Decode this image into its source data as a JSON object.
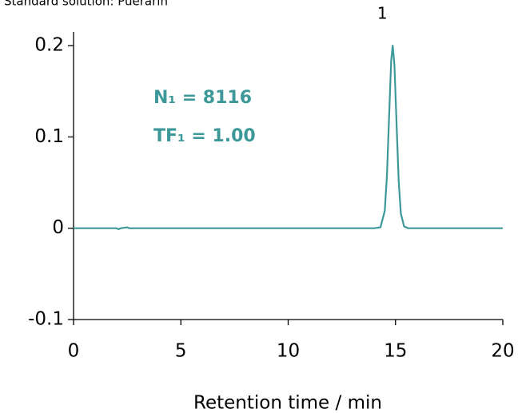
{
  "chart_data": {
    "type": "line",
    "title": "Standard solution: Puerarin",
    "xlabel": "Retention time / min",
    "annotations": [
      "N₁ = 8116",
      "TF₁ = 1.00"
    ],
    "peak_label": "1",
    "x": [
      0,
      2,
      2.1,
      2.2,
      2.5,
      2.6,
      8,
      14,
      14.3,
      14.5,
      14.6,
      14.7,
      14.8,
      14.87,
      14.95,
      15.05,
      15.15,
      15.25,
      15.4,
      15.6,
      16,
      20
    ],
    "series": [
      {
        "name": "Puerarin",
        "color": "#3d9999",
        "values": [
          0,
          0,
          -0.001,
          0,
          0.001,
          0,
          0,
          0,
          0.001,
          0.019,
          0.057,
          0.121,
          0.184,
          0.2,
          0.179,
          0.114,
          0.051,
          0.016,
          0.002,
          0,
          0,
          0
        ]
      }
    ],
    "xlim": [
      0,
      20
    ],
    "xticks": [
      0,
      5,
      10,
      15,
      20
    ],
    "ylim": [
      -0.1,
      0.215
    ],
    "yticks": [
      {
        "value": -0.1,
        "label": "-0.1"
      },
      0,
      0.1,
      0.2
    ]
  }
}
